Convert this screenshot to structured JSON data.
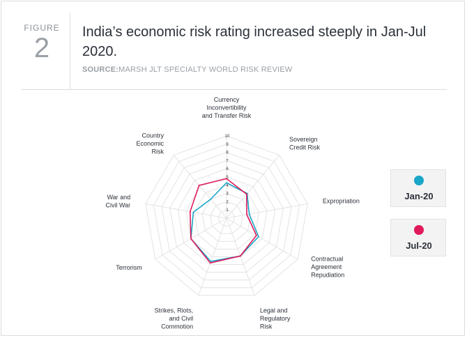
{
  "figure": {
    "label": "FIGURE",
    "number": "2",
    "title": "India’s economic risk rating increased steeply in Jan-Jul 2020.",
    "source_label": "SOURCE:",
    "source_text": "MARSH JLT SPECIALTY WORLD RISK REVIEW"
  },
  "colors": {
    "jan": "#1aa6c8",
    "jul": "#e0195a",
    "grid": "#e3e3e3"
  },
  "chart_data": {
    "type": "radar",
    "axes": [
      [
        "Currency",
        "Inconvertibility",
        "and Transfer Risk"
      ],
      [
        "Sovereign",
        "Credit Risk"
      ],
      [
        "Expropriation"
      ],
      [
        "Contractual",
        "Agreement",
        "Repudiation"
      ],
      [
        "Legal and",
        "Regulatory",
        "Risk"
      ],
      [
        "Strikes, Riots,",
        "and Civil",
        "Commotion"
      ],
      [
        "Terrorism"
      ],
      [
        "War and",
        "Civil War"
      ],
      [
        "Country",
        "Economic",
        "Risk"
      ]
    ],
    "ticks": [
      "1",
      "2",
      "3",
      "4",
      "5",
      "6",
      "7",
      "8",
      "9",
      "10"
    ],
    "rmax": 10,
    "series": [
      {
        "name": "Jan-20",
        "values": [
          4.3,
          3.9,
          2.8,
          4.5,
          4.9,
          5.6,
          5.0,
          4.1,
          3.0
        ]
      },
      {
        "name": "Jul-20",
        "values": [
          4.8,
          3.8,
          2.5,
          4.2,
          4.9,
          5.8,
          5.0,
          4.5,
          5.2
        ]
      }
    ]
  }
}
